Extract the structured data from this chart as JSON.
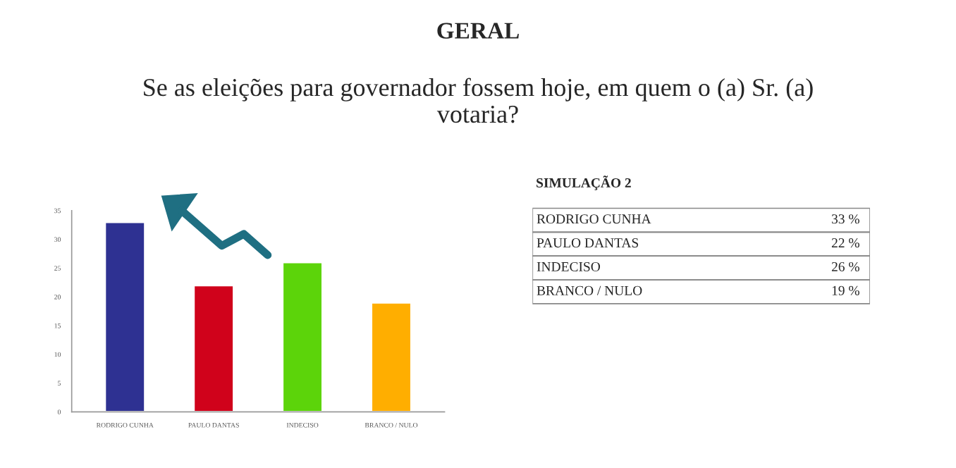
{
  "chart_data": [
    {
      "type": "bar",
      "title": "GERAL",
      "subtitle": "Se as eleições para governador fossem hoje, em quem o (a) Sr. (a)\nvotaria?",
      "categories": [
        "RODRIGO CUNHA",
        "PAULO DANTAS",
        "INDECISO",
        "BRANCO / NULO"
      ],
      "values": [
        33,
        22,
        26,
        19
      ],
      "colors": [
        "#2e3192",
        "#d0021b",
        "#5cd40a",
        "#ffae00"
      ],
      "ylim": [
        0,
        35
      ],
      "yticks": [
        0,
        5,
        10,
        15,
        20,
        25,
        30,
        35
      ],
      "grid": false
    },
    {
      "type": "other",
      "title": "SIMULAÇÃO 2",
      "categories": [
        "RODRIGO CUNHA",
        "PAULO DANTAS",
        "INDECISO",
        "BRANCO / NULO"
      ],
      "annotations": [
        "33 %",
        "22 %",
        "26 %",
        "19 %"
      ]
    }
  ]
}
